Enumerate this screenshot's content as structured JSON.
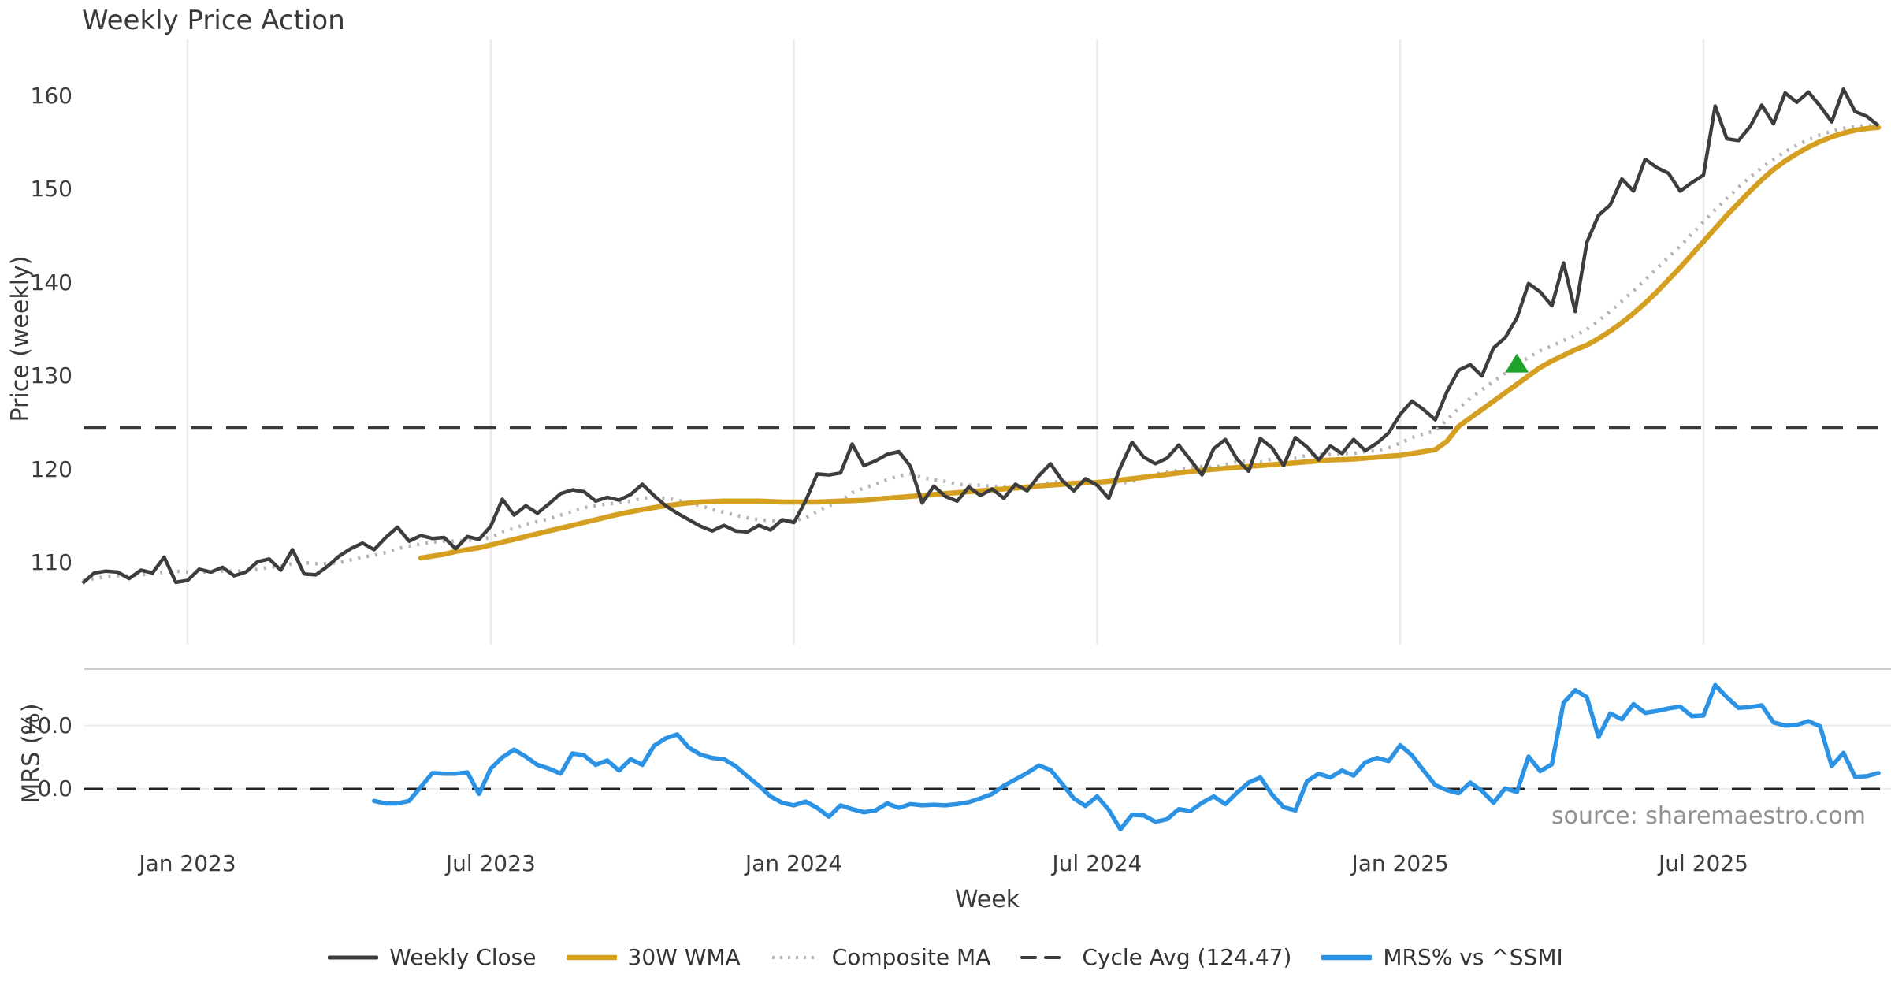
{
  "title": "Weekly Price Action",
  "source_note": "source: sharemaestro.com",
  "axes": {
    "price_axis_title": "Price (weekly)",
    "mrs_axis_title": "MRS (%)",
    "x_axis_title": "Week"
  },
  "colors": {
    "weekly_close": "#3d3d3d",
    "wma_30w": "#d5a021",
    "composite_ma": "#b5b5b5",
    "cycle_avg": "#3a3a3a",
    "mrs": "#2b92e4",
    "signal_green": "#1fa32b",
    "gridline": "#ebebeb",
    "panel_border": "#cccccc",
    "mrs_gridline": "#ededed"
  },
  "legend": {
    "items": [
      {
        "label": "Weekly Close",
        "color": "#3d3d3d",
        "style": "solid"
      },
      {
        "label": "30W WMA",
        "color": "#d5a021",
        "style": "solid-thick"
      },
      {
        "label": "Composite MA",
        "color": "#b5b5b5",
        "style": "dotted"
      },
      {
        "label": "Cycle Avg (124.47)",
        "color": "#3a3a3a",
        "style": "dashed"
      },
      {
        "label": "MRS% vs ^SSMI",
        "color": "#2b92e4",
        "style": "solid-thick"
      }
    ]
  },
  "chart_data": [
    {
      "type": "line",
      "panel": "price",
      "ylabel": "Price (weekly)",
      "ylim": [
        104.8,
        165.1
      ],
      "y_ticks": [
        160,
        150,
        140,
        130,
        120,
        110
      ],
      "n_weeks": 155,
      "x_ticks": [
        {
          "week_index": 9,
          "label": "Jan 2023"
        },
        {
          "week_index": 35,
          "label": "Jul 2023"
        },
        {
          "week_index": 61,
          "label": "Jan 2024"
        },
        {
          "week_index": 87,
          "label": "Jul 2024"
        },
        {
          "week_index": 113,
          "label": "Jan 2025"
        },
        {
          "week_index": 139,
          "label": "Jul 2025"
        }
      ],
      "cycle_avg": 124.47,
      "signal_marker": {
        "week_index": 123,
        "value": 131.3,
        "symbol": "triangle-up",
        "color": "#1fa32b"
      },
      "series": [
        {
          "name": "Weekly Close",
          "start_index": 0,
          "values": [
            107.8,
            108.9,
            109.1,
            109.0,
            108.3,
            109.2,
            108.9,
            110.6,
            107.9,
            108.1,
            109.3,
            109.0,
            109.5,
            108.6,
            109.0,
            110.1,
            110.4,
            109.2,
            111.4,
            108.8,
            108.7,
            109.6,
            110.7,
            111.5,
            112.1,
            111.4,
            112.7,
            113.8,
            112.3,
            112.9,
            112.6,
            112.7,
            111.5,
            112.8,
            112.5,
            113.9,
            116.8,
            115.1,
            116.1,
            115.3,
            116.3,
            117.4,
            117.8,
            117.6,
            116.6,
            117.0,
            116.7,
            117.3,
            118.4,
            117.2,
            116.1,
            115.3,
            114.6,
            113.9,
            113.4,
            114.0,
            113.4,
            113.3,
            114.0,
            113.5,
            114.6,
            114.3,
            116.6,
            119.5,
            119.4,
            119.6,
            122.7,
            120.4,
            120.9,
            121.6,
            121.9,
            120.3,
            116.4,
            118.2,
            117.1,
            116.6,
            118.1,
            117.2,
            117.9,
            116.9,
            118.4,
            117.7,
            119.3,
            120.6,
            118.8,
            117.7,
            119.0,
            118.3,
            116.9,
            120.2,
            122.9,
            121.3,
            120.6,
            121.2,
            122.6,
            121.0,
            119.4,
            122.2,
            123.2,
            121.1,
            119.8,
            123.3,
            122.3,
            120.4,
            123.4,
            122.4,
            121.0,
            122.5,
            121.7,
            123.2,
            122.0,
            122.8,
            123.9,
            125.9,
            127.3,
            126.4,
            125.3,
            128.3,
            130.6,
            131.2,
            130.0,
            133.0,
            134.1,
            136.2,
            139.9,
            139.0,
            137.5,
            142.1,
            136.9,
            144.3,
            147.2,
            148.3,
            151.1,
            149.8,
            153.2,
            152.3,
            151.7,
            149.8,
            150.7,
            151.5,
            158.9,
            155.4,
            155.2,
            156.7,
            159.0,
            157.0,
            160.3,
            159.3,
            160.4,
            158.9,
            157.2,
            160.7,
            158.3,
            157.8,
            156.8
          ]
        },
        {
          "name": "30W WMA",
          "start_index": 29,
          "values": [
            110.5,
            110.7,
            110.9,
            111.2,
            111.4,
            111.6,
            111.9,
            112.2,
            112.5,
            112.8,
            113.1,
            113.4,
            113.7,
            114.0,
            114.3,
            114.6,
            114.9,
            115.2,
            115.45,
            115.7,
            115.9,
            116.1,
            116.25,
            116.4,
            116.5,
            116.55,
            116.6,
            116.6,
            116.6,
            116.6,
            116.55,
            116.5,
            116.5,
            116.5,
            116.5,
            116.55,
            116.6,
            116.65,
            116.7,
            116.8,
            116.9,
            117.0,
            117.1,
            117.2,
            117.3,
            117.4,
            117.5,
            117.6,
            117.7,
            117.8,
            117.9,
            118.0,
            118.1,
            118.2,
            118.3,
            118.4,
            118.5,
            118.55,
            118.6,
            118.7,
            118.85,
            119.0,
            119.15,
            119.3,
            119.45,
            119.6,
            119.75,
            119.9,
            120.0,
            120.1,
            120.2,
            120.3,
            120.4,
            120.5,
            120.6,
            120.7,
            120.8,
            120.9,
            121.0,
            121.05,
            121.1,
            121.2,
            121.3,
            121.4,
            121.5,
            121.7,
            121.9,
            122.1,
            123.0,
            124.6,
            125.5,
            126.4,
            127.3,
            128.2,
            129.1,
            130.0,
            130.9,
            131.6,
            132.2,
            132.8,
            133.3,
            134.0,
            134.8,
            135.7,
            136.7,
            137.8,
            139.0,
            140.3,
            141.6,
            143.0,
            144.4,
            145.8,
            147.2,
            148.5,
            149.8,
            151.0,
            152.1,
            153.0,
            153.8,
            154.5,
            155.1,
            155.6,
            156.0,
            156.3,
            156.5,
            156.6
          ]
        },
        {
          "name": "Composite MA",
          "start_index": 0,
          "values": [
            108.1,
            108.3,
            108.5,
            108.6,
            108.6,
            108.7,
            108.8,
            109.0,
            109.1,
            109.0,
            109.0,
            109.0,
            109.1,
            109.1,
            109.1,
            109.3,
            109.5,
            109.6,
            109.9,
            110.0,
            109.9,
            109.9,
            110.0,
            110.3,
            110.6,
            110.8,
            111.1,
            111.5,
            111.8,
            112.0,
            112.2,
            112.3,
            112.3,
            112.4,
            112.5,
            112.7,
            113.3,
            113.7,
            114.1,
            114.4,
            114.7,
            115.1,
            115.5,
            115.9,
            116.1,
            116.3,
            116.4,
            116.6,
            116.9,
            117.0,
            116.9,
            116.7,
            116.4,
            116.1,
            115.7,
            115.4,
            115.1,
            114.8,
            114.6,
            114.5,
            114.5,
            114.5,
            114.8,
            115.5,
            116.1,
            116.6,
            117.5,
            118.0,
            118.4,
            118.9,
            119.3,
            119.5,
            119.1,
            118.9,
            118.7,
            118.4,
            118.3,
            118.3,
            118.2,
            118.1,
            118.1,
            118.1,
            118.3,
            118.6,
            118.7,
            118.6,
            118.7,
            118.7,
            118.7,
            118.5,
            118.7,
            119.2,
            119.5,
            119.7,
            119.9,
            120.2,
            120.3,
            120.2,
            120.5,
            120.8,
            120.9,
            120.8,
            121.1,
            121.3,
            121.2,
            121.5,
            121.6,
            121.6,
            121.7,
            121.7,
            121.9,
            122.0,
            122.3,
            122.8,
            123.4,
            123.8,
            124.1,
            125.3,
            126.5,
            127.6,
            128.5,
            129.4,
            130.3,
            131.2,
            132.0,
            132.7,
            133.2,
            133.8,
            134.3,
            135.0,
            135.9,
            136.9,
            138.0,
            139.1,
            140.3,
            141.5,
            142.7,
            143.9,
            145.2,
            146.5,
            147.8,
            149.0,
            150.2,
            151.3,
            152.3,
            153.2,
            154.0,
            154.7,
            155.3,
            155.8,
            156.2,
            156.5,
            156.7,
            156.8,
            156.8
          ]
        }
      ]
    },
    {
      "type": "line",
      "panel": "mrs",
      "ylabel": "MRS (%)",
      "ylim": [
        -8.0,
        18.9
      ],
      "y_ticks": [
        {
          "value": 10,
          "label": "10.0"
        },
        {
          "value": 0,
          "label": "0.0"
        }
      ],
      "zero_line": 0.0,
      "series": [
        {
          "name": "MRS% vs ^SSMI",
          "start_index": 25,
          "values": [
            -1.9,
            -2.3,
            -2.3,
            -1.9,
            0.3,
            2.5,
            2.4,
            2.4,
            2.6,
            -0.8,
            3.2,
            5.0,
            6.2,
            5.1,
            3.8,
            3.2,
            2.4,
            5.6,
            5.3,
            3.8,
            4.5,
            2.9,
            4.7,
            3.8,
            6.8,
            8.0,
            8.6,
            6.5,
            5.4,
            4.9,
            4.7,
            3.6,
            2.0,
            0.5,
            -1.2,
            -2.2,
            -2.6,
            -2.0,
            -3.0,
            -4.4,
            -2.6,
            -3.2,
            -3.7,
            -3.4,
            -2.3,
            -3.0,
            -2.4,
            -2.6,
            -2.5,
            -2.6,
            -2.4,
            -2.1,
            -1.5,
            -0.8,
            0.5,
            1.5,
            2.5,
            3.7,
            3.0,
            0.8,
            -1.5,
            -2.7,
            -1.2,
            -3.3,
            -6.4,
            -4.1,
            -4.2,
            -5.2,
            -4.8,
            -3.2,
            -3.5,
            -2.2,
            -1.2,
            -2.4,
            -0.6,
            1.0,
            1.8,
            -0.9,
            -2.9,
            -3.4,
            1.2,
            2.4,
            1.8,
            2.9,
            2.1,
            4.2,
            4.9,
            4.4,
            6.9,
            5.3,
            2.9,
            0.6,
            -0.2,
            -0.7,
            1.0,
            -0.3,
            -2.2,
            0.1,
            -0.5,
            5.1,
            2.8,
            3.9,
            13.6,
            15.6,
            14.5,
            8.2,
            11.9,
            11.0,
            13.4,
            12.0,
            12.3,
            12.7,
            13.0,
            11.5,
            11.6,
            16.4,
            14.5,
            12.8,
            12.9,
            13.2,
            10.5,
            10.0,
            10.1,
            10.7,
            9.9,
            3.6,
            5.7,
            1.9,
            2.0,
            2.5
          ]
        }
      ]
    }
  ]
}
